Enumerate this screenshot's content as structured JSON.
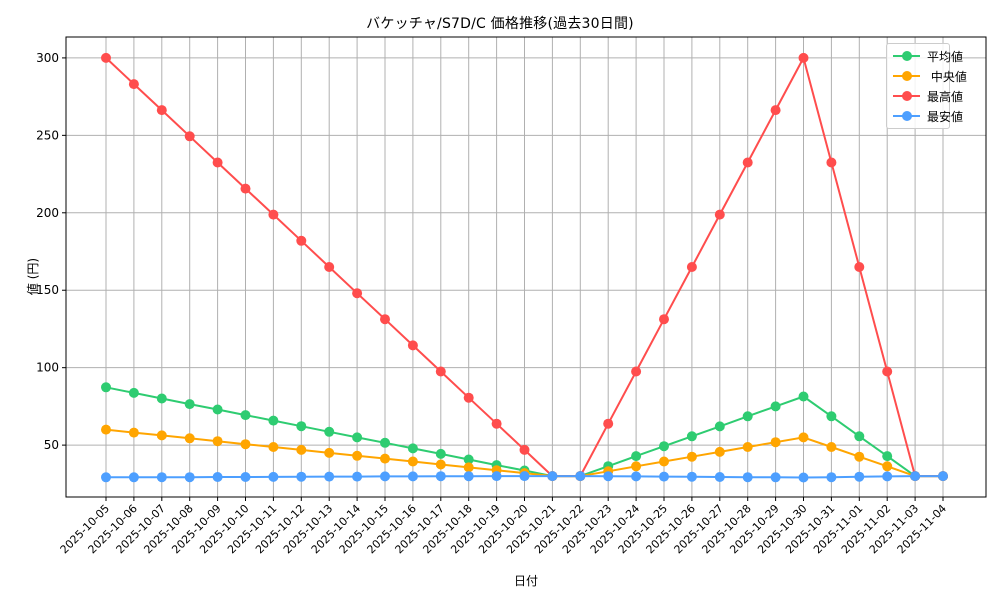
{
  "chart": {
    "title": "バケッチャ/S7D/C 価格推移(過去30日間)",
    "xlabel": "日付",
    "ylabel": "値 (円)"
  },
  "legend": {
    "items": [
      {
        "label": "平均値",
        "color": "#2ecc71"
      },
      {
        "label": " 中央値",
        "color": "#ffa500"
      },
      {
        "label": "最高値",
        "color": "#ff4d4d"
      },
      {
        "label": "最安値",
        "color": "#4d9fff"
      }
    ]
  },
  "chart_data": {
    "type": "line",
    "title": "バケッチャ/S7D/C 価格推移(過去30日間)",
    "xlabel": "日付",
    "ylabel": "値 (円)",
    "ylim": [
      16.5,
      313.5
    ],
    "yticks": [
      50,
      100,
      150,
      200,
      250,
      300
    ],
    "grid": true,
    "legend_position": "upper right",
    "categories": [
      "2025-10-05",
      "2025-10-06",
      "2025-10-07",
      "2025-10-08",
      "2025-10-09",
      "2025-10-10",
      "2025-10-11",
      "2025-10-12",
      "2025-10-13",
      "2025-10-14",
      "2025-10-15",
      "2025-10-16",
      "2025-10-17",
      "2025-10-18",
      "2025-10-19",
      "2025-10-20",
      "2025-10-21",
      "2025-10-22",
      "2025-10-23",
      "2025-10-24",
      "2025-10-25",
      "2025-10-26",
      "2025-10-27",
      "2025-10-28",
      "2025-10-29",
      "2025-10-30",
      "2025-10-31",
      "2025-11-01",
      "2025-11-02",
      "2025-11-03",
      "2025-11-04"
    ],
    "series": [
      {
        "name": "平均値",
        "color": "#2ecc71",
        "values": [
          87.3,
          83.7,
          80.1,
          76.5,
          73.0,
          69.4,
          65.8,
          62.2,
          58.6,
          55.0,
          51.5,
          47.9,
          44.3,
          40.7,
          37.1,
          33.6,
          30.0,
          30.0,
          36.4,
          42.9,
          49.3,
          55.7,
          62.1,
          68.6,
          75.0,
          81.4,
          68.6,
          55.7,
          42.9,
          30.0,
          30.0
        ]
      },
      {
        "name": "中央値",
        "color": "#ffa500",
        "values": [
          60.0,
          58.1,
          56.3,
          54.4,
          52.5,
          50.6,
          48.8,
          46.9,
          45.0,
          43.1,
          41.3,
          39.4,
          37.5,
          35.6,
          33.8,
          31.9,
          30.0,
          30.0,
          33.1,
          36.3,
          39.4,
          42.5,
          45.6,
          48.8,
          51.9,
          55.0,
          48.8,
          42.5,
          36.3,
          30.0,
          30.0
        ]
      },
      {
        "name": "最高値",
        "color": "#ff4d4d",
        "values": [
          300.0,
          283.1,
          266.3,
          249.4,
          232.5,
          215.6,
          198.8,
          181.9,
          165.0,
          148.1,
          131.3,
          114.4,
          97.5,
          80.6,
          63.8,
          46.9,
          30.0,
          30.0,
          63.8,
          97.5,
          131.3,
          165.0,
          198.8,
          232.5,
          266.3,
          300.0,
          232.5,
          165.0,
          97.5,
          30.0,
          30.0
        ]
      },
      {
        "name": "最安値",
        "color": "#4d9fff",
        "values": [
          29.2,
          29.2,
          29.3,
          29.3,
          29.4,
          29.4,
          29.5,
          29.6,
          29.7,
          29.7,
          29.8,
          29.8,
          29.9,
          29.9,
          30.0,
          30.0,
          30.0,
          30.0,
          29.9,
          29.8,
          29.7,
          29.6,
          29.4,
          29.3,
          29.2,
          29.1,
          29.3,
          29.6,
          29.8,
          30.0,
          30.0
        ]
      }
    ]
  }
}
